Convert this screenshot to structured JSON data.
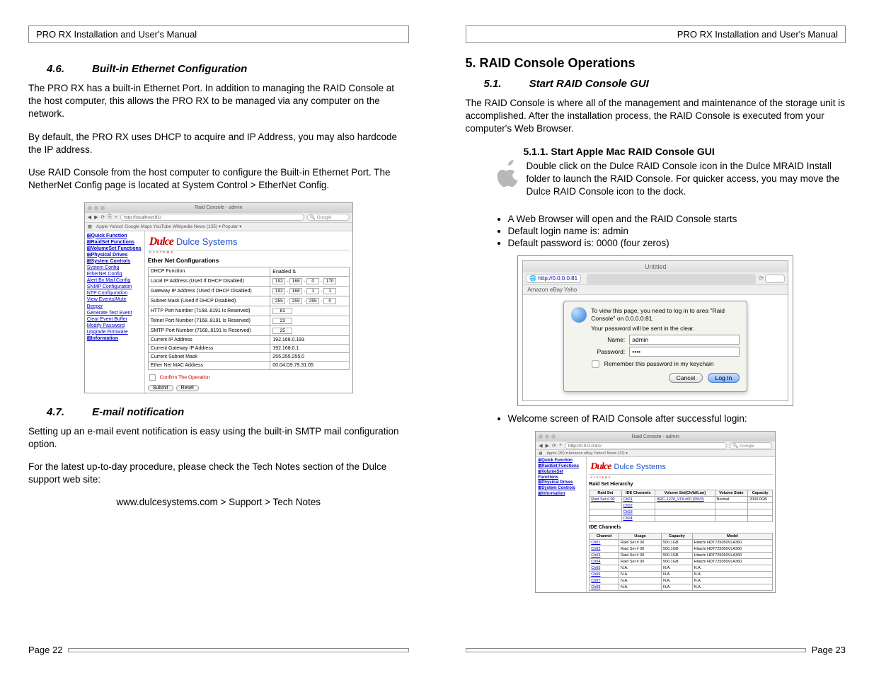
{
  "doc_title": "PRO RX Installation and User's Manual",
  "left": {
    "sec46_num": "4.6.",
    "sec46_title": "Built-in Ethernet Configuration",
    "p1": "The PRO RX has a built-in Ethernet Port.  In addition to managing the RAID Console at the host computer, this allows the PRO RX to be managed via any computer on the network.",
    "p2": "By default, the PRO RX uses DHCP to acquire and IP Address, you may also hardcode the IP address.",
    "p3": "Use RAID Console from the host computer to configure the Built-in Ethernet Port.  The NetherNet Config page is located at System Control > EtherNet Config.",
    "sec47_num": "4.7.",
    "sec47_title": "E-mail notification",
    "p4": "Setting up an e-mail event notification is easy using the built-in SMTP mail configuration option.",
    "p5": "For the latest up-to-day procedure, please check the Tech Notes section of the Dulce support web site:",
    "url": "www.dulcesystems.com > Support > Tech Notes",
    "page": "Page 22"
  },
  "right": {
    "chapter": "5. RAID Console Operations",
    "sec51_num": "5.1.",
    "sec51_title": "Start RAID Console GUI",
    "p1": "The RAID Console is where all of the management and maintenance of the storage unit is accomplished.  After the installation process, the RAID Console is executed from your computer's Web Browser.",
    "sub511": "5.1.1. Start Apple Mac RAID Console GUI",
    "p2": "Double click on the Dulce RAID Console icon in the Dulce MRAID Install folder to launch the RAID Console.  For quicker access, you may move the Dulce RAID Console icon to the dock.",
    "b1": "A Web Browser will open and the RAID Console starts",
    "b2": "Default login name is: admin",
    "b3": "Default password is: 0000   (four zeros)",
    "welcome": "Welcome screen of RAID Console after successful login:",
    "page": "Page 23"
  },
  "shot1": {
    "wintitle": "Raid Console - admin",
    "url": "http://localhost:81/",
    "search_ph": "Google",
    "bookmarks": [
      "Apple",
      "Yahoo!",
      "Google Maps",
      "YouTube",
      "Wikipedia",
      "News (135) ▾",
      "Popular ▾"
    ],
    "sidebar_heads": [
      "Quick Function",
      "RaidSet Functions",
      "VolumeSet Functions",
      "Physical Drives",
      "System Controls",
      "Information"
    ],
    "sidebar_links": [
      "System Config",
      "EtherNet Config",
      "Alert By Mail Config",
      "SNMP Configuration",
      "NTP Configuration",
      "View Events/Mute Beeper",
      "Generate Test Event",
      "Clear Event Buffer",
      "Modify Password",
      "Upgrade Firmware"
    ],
    "logo_brand": "Dulce",
    "logo_sub": "SYSTEMS",
    "logo_company": "Dulce Systems",
    "pane_title": "Ether Net Configurations",
    "rows": [
      {
        "l": "DHCP Function",
        "v": "Enabled",
        "type": "select"
      },
      {
        "l": "Local IP Address (Used If DHCP Disabled)",
        "v": [
          "192",
          "168",
          "0",
          "170"
        ],
        "type": "ip"
      },
      {
        "l": "Gateway IP Address (Used If DHCP Disabled)",
        "v": [
          "192",
          "168",
          "1",
          "1"
        ],
        "type": "ip"
      },
      {
        "l": "Subnet Mask (Used If DHCP Disabled)",
        "v": [
          "255",
          "255",
          "255",
          "0"
        ],
        "type": "ip"
      },
      {
        "l": "HTTP Port Number (7168..8191 Is Reserved)",
        "v": "81",
        "type": "text"
      },
      {
        "l": "Telnet Port Number (7168..8191 Is Reserved)",
        "v": "23",
        "type": "text"
      },
      {
        "l": "SMTP Port Number (7168..8191 Is Reserved)",
        "v": "25",
        "type": "text"
      },
      {
        "l": "Current IP Address",
        "v": "192.168.0.193",
        "type": "ro"
      },
      {
        "l": "Current Gateway IP Address",
        "v": "192.168.0.1",
        "type": "ro"
      },
      {
        "l": "Current Subnet Mask",
        "v": "255.255.255.0",
        "type": "ro"
      },
      {
        "l": "Ether Net MAC Address",
        "v": "00.04.D9.79.31.05",
        "type": "ro"
      }
    ],
    "confirm": "Confirm The Operation",
    "submit": "Submit",
    "reset": "Reset"
  },
  "login": {
    "wintitle": "Untitled",
    "url": "http://0.0.0.0:81",
    "bookmarks": "Amazon   eBay   Yaho",
    "msg1": "To view this page, you need to log in to area \"Raid Console\" on 0.0.0.0:81.",
    "msg2": "Your password will be sent in the clear.",
    "name_lbl": "Name:",
    "name_val": "admin",
    "pw_lbl": "Password:",
    "pw_val": "••••",
    "remember": "Remember this password in my keychain",
    "cancel": "Cancel",
    "login": "Log In"
  },
  "shot3": {
    "wintitle": "Raid Console - admin",
    "url": "http://0.0.0.0:81/",
    "search_ph": "Google",
    "bookmarks": [
      "Apple (35) ▾",
      "Amazon",
      "eBay",
      "Yahoo!",
      "News (72) ▾"
    ],
    "sidebar_heads": [
      "Quick Function",
      "RaidSet Functions",
      "VolumeSet Functions",
      "Physical Drives",
      "System Controls",
      "Information"
    ],
    "pane_title": "Raid Set Hierarchy",
    "raid_cols": [
      "Raid Set",
      "IDE Channels",
      "Volume Set(Ch/Id/Lun)",
      "Volume State",
      "Capacity"
    ],
    "raid_rows": [
      [
        "Raid Set # 00",
        "Ch01",
        "ARC-1220_VOL#00 (0/0/0)",
        "Normal",
        "2000.0GB"
      ],
      [
        "",
        "Ch02",
        "",
        "",
        ""
      ],
      [
        "",
        "Ch03",
        "",
        "",
        ""
      ],
      [
        "",
        "Ch04",
        "",
        "",
        ""
      ]
    ],
    "ide_title": "IDE Channels",
    "ide_cols": [
      "Channel",
      "Usage",
      "Capacity",
      "Model"
    ],
    "ide_rows": [
      [
        "Ch01",
        "Raid Set # 00",
        "500.1GB",
        "Hitachi HDT725050VLA360"
      ],
      [
        "Ch02",
        "Raid Set # 00",
        "500.1GB",
        "Hitachi HDT725050VLA360"
      ],
      [
        "Ch03",
        "Raid Set # 00",
        "500.1GB",
        "Hitachi HDT725050VLA360"
      ],
      [
        "Ch04",
        "Raid Set # 00",
        "500.1GB",
        "Hitachi HDT725050VLA360"
      ],
      [
        "Ch05",
        "N.A.",
        "N.A.",
        "N.A."
      ],
      [
        "Ch06",
        "N.A.",
        "N.A.",
        "N.A."
      ],
      [
        "Ch07",
        "N.A.",
        "N.A.",
        "N.A."
      ],
      [
        "Ch08",
        "N.A.",
        "N.A.",
        "N.A."
      ]
    ]
  }
}
